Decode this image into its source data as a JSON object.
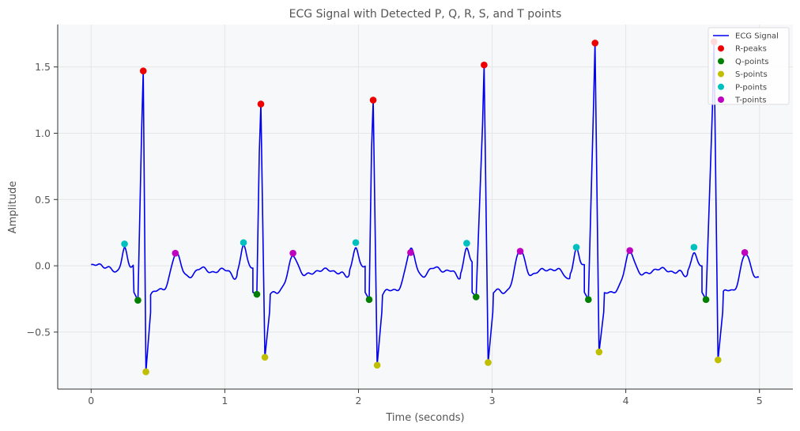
{
  "chart_data": {
    "type": "line",
    "title": "ECG Signal with Detected P, Q, R, S, and T points",
    "xlabel": "Time (seconds)",
    "ylabel": "Amplitude",
    "xlim": [
      -0.25,
      5.25
    ],
    "ylim": [
      -0.93,
      1.82
    ],
    "xticks": [
      0,
      1,
      2,
      3,
      4,
      5
    ],
    "xtick_labels": [
      "0",
      "1",
      "2",
      "3",
      "4",
      "5"
    ],
    "yticks": [
      -0.5,
      0.0,
      0.5,
      1.0,
      1.5
    ],
    "ytick_labels": [
      "−0.5",
      "0.0",
      "0.5",
      "1.0",
      "1.5"
    ],
    "grid": true,
    "legend_position": "top-right",
    "beats": [
      {
        "p": [
          0.25,
          0.165
        ],
        "q": [
          0.35,
          -0.26
        ],
        "r": [
          0.39,
          1.47
        ],
        "s": [
          0.41,
          -0.8
        ],
        "t": [
          0.63,
          0.095
        ]
      },
      {
        "p": [
          1.14,
          0.175
        ],
        "q": [
          1.24,
          -0.215
        ],
        "r": [
          1.27,
          1.22
        ],
        "s": [
          1.3,
          -0.69
        ],
        "t": [
          1.51,
          0.095
        ]
      },
      {
        "p": [
          1.98,
          0.175
        ],
        "q": [
          2.08,
          -0.255
        ],
        "r": [
          2.11,
          1.25
        ],
        "s": [
          2.14,
          -0.75
        ],
        "t": [
          2.39,
          0.1
        ]
      },
      {
        "p": [
          2.81,
          0.17
        ],
        "q": [
          2.88,
          -0.235
        ],
        "r": [
          2.94,
          1.515
        ],
        "s": [
          2.97,
          -0.73
        ],
        "t": [
          3.21,
          0.11
        ]
      },
      {
        "p": [
          3.63,
          0.14
        ],
        "q": [
          3.72,
          -0.255
        ],
        "r": [
          3.77,
          1.68
        ],
        "s": [
          3.8,
          -0.65
        ],
        "t": [
          4.03,
          0.115
        ]
      },
      {
        "p": [
          4.51,
          0.14
        ],
        "q": [
          4.6,
          -0.255
        ],
        "r": [
          4.66,
          1.69
        ],
        "s": [
          4.69,
          -0.71
        ],
        "t": [
          4.89,
          0.1
        ]
      }
    ],
    "series": [
      {
        "name": "ECG Signal",
        "kind": "line",
        "color": "#0000ee"
      },
      {
        "name": "R-peaks",
        "kind": "point",
        "key": "r",
        "color": "#ee0000"
      },
      {
        "name": "Q-points",
        "kind": "point",
        "key": "q",
        "color": "#007f00"
      },
      {
        "name": "S-points",
        "kind": "point",
        "key": "s",
        "color": "#bfbf00"
      },
      {
        "name": "P-points",
        "kind": "point",
        "key": "p",
        "color": "#00bfbf"
      },
      {
        "name": "T-points",
        "kind": "point",
        "key": "t",
        "color": "#bf00bf"
      }
    ],
    "signal_end": [
      4.99,
      -0.09
    ]
  }
}
